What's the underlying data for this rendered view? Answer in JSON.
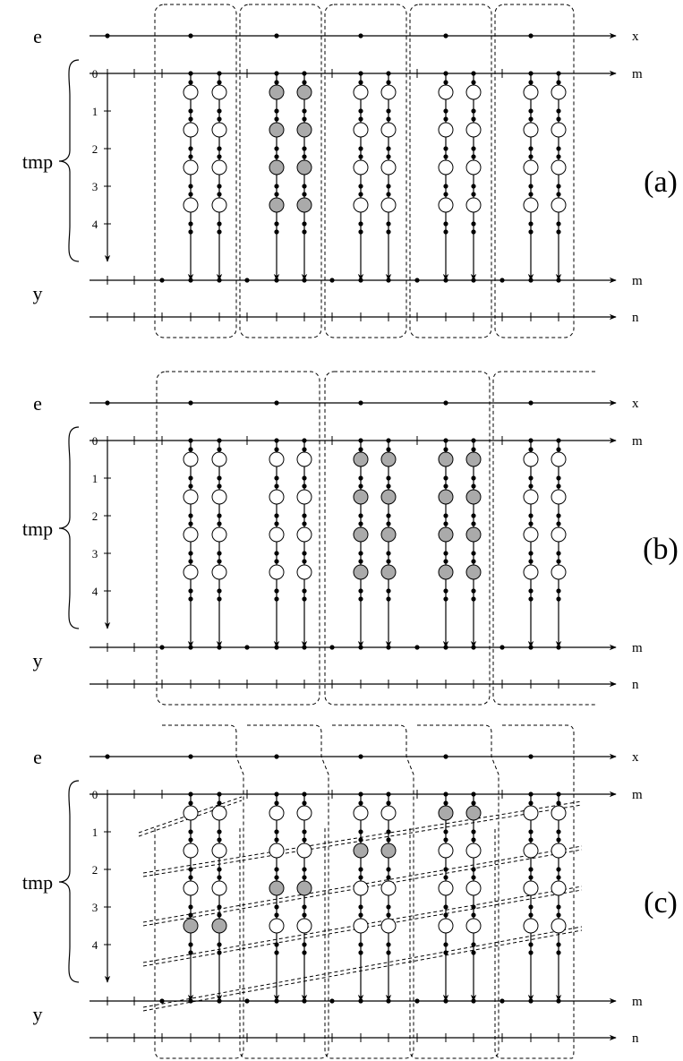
{
  "panels": [
    {
      "label": "(a)",
      "row_labels": {
        "e": "e",
        "tmp": "tmp",
        "y": "y"
      },
      "axis_labels": {
        "x": "x",
        "m_top": "m",
        "m_bottom": "m",
        "n": "n"
      },
      "tmp_ticks": [
        "0",
        "1",
        "2",
        "3",
        "4"
      ],
      "shaded": [
        [
          false,
          false,
          false,
          false
        ],
        [
          false,
          false,
          false,
          false
        ],
        [
          true,
          true,
          true,
          true
        ],
        [
          true,
          true,
          true,
          true
        ],
        [
          false,
          false,
          false,
          false
        ],
        [
          false,
          false,
          false,
          false
        ],
        [
          false,
          false,
          false,
          false
        ],
        [
          false,
          false,
          false,
          false
        ],
        [
          false,
          false,
          false,
          false
        ],
        [
          false,
          false,
          false,
          false
        ]
      ]
    },
    {
      "label": "(b)",
      "row_labels": {
        "e": "e",
        "tmp": "tmp",
        "y": "y"
      },
      "axis_labels": {
        "x": "x",
        "m_top": "m",
        "m_bottom": "m",
        "n": "n"
      },
      "tmp_ticks": [
        "0",
        "1",
        "2",
        "3",
        "4"
      ],
      "shaded": [
        [
          false,
          false,
          false,
          false
        ],
        [
          false,
          false,
          false,
          false
        ],
        [
          false,
          false,
          false,
          false
        ],
        [
          false,
          false,
          false,
          false
        ],
        [
          true,
          true,
          true,
          true
        ],
        [
          true,
          true,
          true,
          true
        ],
        [
          true,
          true,
          true,
          true
        ],
        [
          true,
          true,
          true,
          true
        ],
        [
          false,
          false,
          false,
          false
        ],
        [
          false,
          false,
          false,
          false
        ]
      ]
    },
    {
      "label": "(c)",
      "row_labels": {
        "e": "e",
        "tmp": "tmp",
        "y": "y"
      },
      "axis_labels": {
        "x": "x",
        "m_top": "m",
        "m_bottom": "m",
        "n": "n"
      },
      "tmp_ticks": [
        "0",
        "1",
        "2",
        "3",
        "4"
      ],
      "shaded": [
        [
          false,
          false,
          false,
          true
        ],
        [
          false,
          false,
          false,
          true
        ],
        [
          false,
          false,
          true,
          false
        ],
        [
          false,
          false,
          true,
          false
        ],
        [
          false,
          true,
          false,
          false
        ],
        [
          false,
          true,
          false,
          false
        ],
        [
          true,
          false,
          false,
          false
        ],
        [
          true,
          false,
          false,
          false
        ],
        [
          false,
          false,
          false,
          false
        ],
        [
          false,
          false,
          false,
          false
        ]
      ]
    }
  ]
}
